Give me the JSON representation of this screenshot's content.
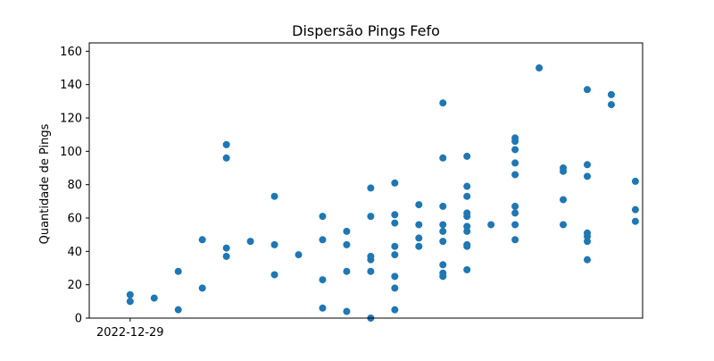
{
  "chart_data": {
    "type": "scatter",
    "title": "Dispersão Pings Fefo",
    "xlabel": "",
    "ylabel": "Quantidade de Pings",
    "x_tick_labels": [
      "2022-12-29"
    ],
    "x_tick_positions": [
      0
    ],
    "xlim": [
      -1.7,
      21.3
    ],
    "ylim": [
      0,
      165
    ],
    "y_ticks": [
      0,
      20,
      40,
      60,
      80,
      100,
      120,
      140,
      160
    ],
    "grid": false,
    "legend": "none",
    "marker_color": "#1f77b4",
    "points": [
      {
        "x": 0,
        "y": 14
      },
      {
        "x": 0,
        "y": 10
      },
      {
        "x": 1,
        "y": 12
      },
      {
        "x": 2,
        "y": 28
      },
      {
        "x": 2,
        "y": 5
      },
      {
        "x": 3,
        "y": 47
      },
      {
        "x": 3,
        "y": 18
      },
      {
        "x": 4,
        "y": 104
      },
      {
        "x": 4,
        "y": 96
      },
      {
        "x": 4,
        "y": 42
      },
      {
        "x": 4,
        "y": 37
      },
      {
        "x": 5,
        "y": 46
      },
      {
        "x": 6,
        "y": 73
      },
      {
        "x": 6,
        "y": 44
      },
      {
        "x": 6,
        "y": 26
      },
      {
        "x": 7,
        "y": 38
      },
      {
        "x": 8,
        "y": 61
      },
      {
        "x": 8,
        "y": 47
      },
      {
        "x": 8,
        "y": 23
      },
      {
        "x": 8,
        "y": 6
      },
      {
        "x": 9,
        "y": 52
      },
      {
        "x": 9,
        "y": 44
      },
      {
        "x": 9,
        "y": 28
      },
      {
        "x": 9,
        "y": 4
      },
      {
        "x": 10,
        "y": 78
      },
      {
        "x": 10,
        "y": 61
      },
      {
        "x": 10,
        "y": 37
      },
      {
        "x": 10,
        "y": 35
      },
      {
        "x": 10,
        "y": 28
      },
      {
        "x": 10,
        "y": 0
      },
      {
        "x": 11,
        "y": 81
      },
      {
        "x": 11,
        "y": 62
      },
      {
        "x": 11,
        "y": 57
      },
      {
        "x": 11,
        "y": 43
      },
      {
        "x": 11,
        "y": 38
      },
      {
        "x": 11,
        "y": 25
      },
      {
        "x": 11,
        "y": 18
      },
      {
        "x": 11,
        "y": 5
      },
      {
        "x": 12,
        "y": 68
      },
      {
        "x": 12,
        "y": 56
      },
      {
        "x": 12,
        "y": 48
      },
      {
        "x": 12,
        "y": 43
      },
      {
        "x": 13,
        "y": 129
      },
      {
        "x": 13,
        "y": 96
      },
      {
        "x": 13,
        "y": 67
      },
      {
        "x": 13,
        "y": 56
      },
      {
        "x": 13,
        "y": 52
      },
      {
        "x": 13,
        "y": 46
      },
      {
        "x": 13,
        "y": 32
      },
      {
        "x": 13,
        "y": 27
      },
      {
        "x": 13,
        "y": 25
      },
      {
        "x": 14,
        "y": 97
      },
      {
        "x": 14,
        "y": 79
      },
      {
        "x": 14,
        "y": 73
      },
      {
        "x": 14,
        "y": 63
      },
      {
        "x": 14,
        "y": 61
      },
      {
        "x": 14,
        "y": 55
      },
      {
        "x": 14,
        "y": 52
      },
      {
        "x": 14,
        "y": 44
      },
      {
        "x": 14,
        "y": 43
      },
      {
        "x": 14,
        "y": 29
      },
      {
        "x": 15,
        "y": 56
      },
      {
        "x": 16,
        "y": 108
      },
      {
        "x": 16,
        "y": 106
      },
      {
        "x": 16,
        "y": 101
      },
      {
        "x": 16,
        "y": 93
      },
      {
        "x": 16,
        "y": 86
      },
      {
        "x": 16,
        "y": 67
      },
      {
        "x": 16,
        "y": 63
      },
      {
        "x": 16,
        "y": 56
      },
      {
        "x": 16,
        "y": 47
      },
      {
        "x": 17,
        "y": 150
      },
      {
        "x": 18,
        "y": 90
      },
      {
        "x": 18,
        "y": 88
      },
      {
        "x": 18,
        "y": 71
      },
      {
        "x": 18,
        "y": 56
      },
      {
        "x": 19,
        "y": 137
      },
      {
        "x": 19,
        "y": 92
      },
      {
        "x": 19,
        "y": 85
      },
      {
        "x": 19,
        "y": 51
      },
      {
        "x": 19,
        "y": 49
      },
      {
        "x": 19,
        "y": 46
      },
      {
        "x": 19,
        "y": 35
      },
      {
        "x": 20,
        "y": 134
      },
      {
        "x": 20,
        "y": 128
      },
      {
        "x": 21,
        "y": 82
      },
      {
        "x": 21,
        "y": 65
      },
      {
        "x": 21,
        "y": 58
      }
    ]
  }
}
